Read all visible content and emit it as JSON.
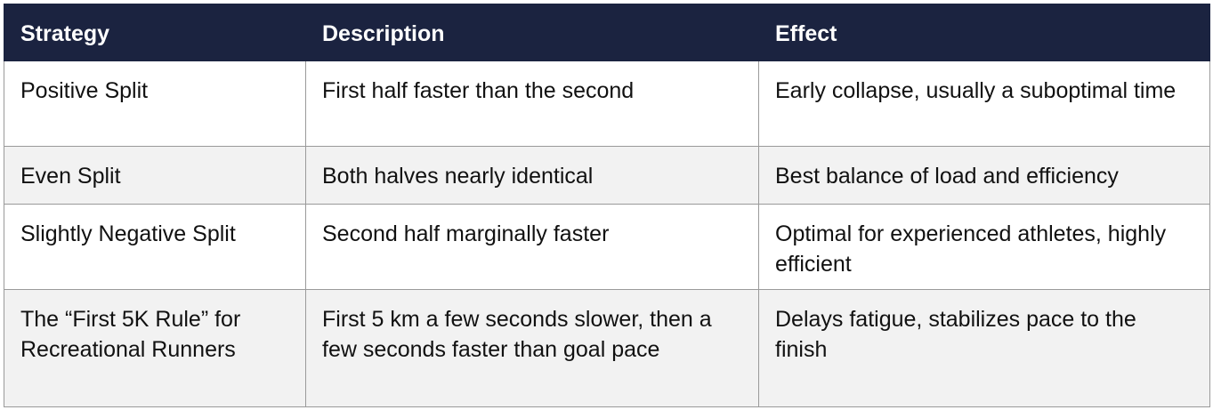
{
  "table": {
    "header": [
      "Strategy",
      "Description",
      "Effect"
    ],
    "rows": [
      [
        "Positive Split",
        "First half faster than the second",
        "Early collapse, usually a suboptimal time"
      ],
      [
        "Even Split",
        "Both halves nearly identical",
        "Best balance of load and efficiency"
      ],
      [
        "Slightly Negative Split",
        "Second half marginally faster",
        "Optimal for experienced athletes, highly efficient"
      ],
      [
        "The “First 5K Rule” for Recreational Runners",
        "First 5 km a few seconds slower, then a few seconds faster than goal pace",
        "Delays fatigue, stabilizes pace to the finish"
      ]
    ]
  }
}
